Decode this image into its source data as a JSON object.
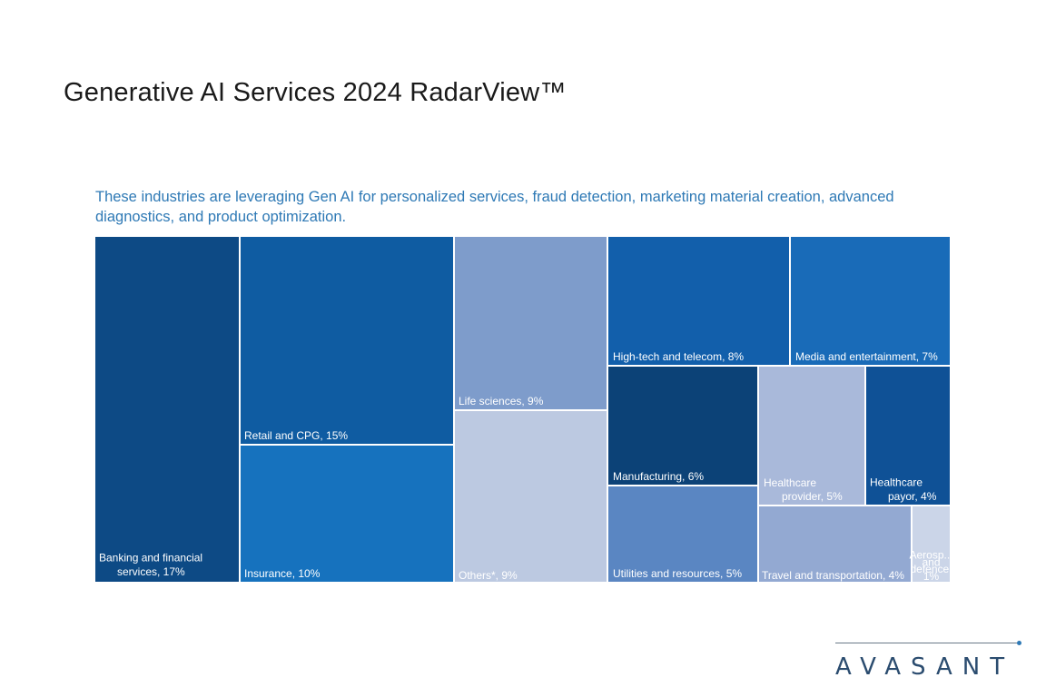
{
  "header": {
    "title": "Generative AI Services 2024 RadarView™"
  },
  "chart_data": {
    "type": "treemap",
    "title": "These industries are leveraging Gen AI for personalized services, fraud detection, marketing material creation, advanced diagnostics, and product optimization.",
    "unit": "%",
    "cells": [
      {
        "label": "Banking and financial services, 17%",
        "lines": [
          "Banking and financial",
          "services, 17%"
        ],
        "value": 17,
        "color": "#0d4a85",
        "text_color": "#ffffff"
      },
      {
        "label": "Retail and CPG, 15%",
        "lines": [
          "Retail and CPG, 15%"
        ],
        "value": 15,
        "color": "#0f5ca2",
        "text_color": "#ffffff"
      },
      {
        "label": "Insurance, 10%",
        "lines": [
          "Insurance, 10%"
        ],
        "value": 10,
        "color": "#1672be",
        "text_color": "#ffffff"
      },
      {
        "label": "Life sciences, 9%",
        "lines": [
          "Life sciences, 9%"
        ],
        "value": 9,
        "color": "#7e9ccb",
        "text_color": "#ffffff"
      },
      {
        "label": "Others*, 9%",
        "lines": [
          "Others*, 9%"
        ],
        "value": 9,
        "color": "#bcc9e1",
        "text_color": "#ffffff"
      },
      {
        "label": "High-tech and telecom, 8%",
        "lines": [
          "High-tech and telecom, 8%"
        ],
        "value": 8,
        "color": "#125fab",
        "text_color": "#ffffff"
      },
      {
        "label": "Media and entertainment, 7%",
        "lines": [
          "Media and entertainment, 7%"
        ],
        "value": 7,
        "color": "#196bb8",
        "text_color": "#ffffff"
      },
      {
        "label": "Manufacturing, 6%",
        "lines": [
          "Manufacturing, 6%"
        ],
        "value": 6,
        "color": "#0c4277",
        "text_color": "#ffffff"
      },
      {
        "label": "Utilities and resources, 5%",
        "lines": [
          "Utilities and resources, 5%"
        ],
        "value": 5,
        "color": "#5a86c2",
        "text_color": "#ffffff"
      },
      {
        "label": "Healthcare provider, 5%",
        "lines": [
          "Healthcare",
          "provider, 5%"
        ],
        "value": 5,
        "color": "#a9b9da",
        "text_color": "#ffffff"
      },
      {
        "label": "Healthcare payor, 4%",
        "lines": [
          "Healthcare",
          "payor, 4%"
        ],
        "value": 4,
        "color": "#0f5196",
        "text_color": "#ffffff"
      },
      {
        "label": "Travel and transportation, 4%",
        "lines": [
          "Travel and transportation, 4%"
        ],
        "value": 4,
        "color": "#93a9d2",
        "text_color": "#ffffff"
      },
      {
        "label": "Aerospace and defense, 1%",
        "lines": [
          "Aerosp...",
          "and",
          "defence,",
          "1%"
        ],
        "value": 1,
        "color": "#cbd5e8",
        "text_color": "#ffffff"
      }
    ]
  },
  "brand": {
    "logo_text": "AVASANT",
    "accent": "#2e79b5"
  }
}
